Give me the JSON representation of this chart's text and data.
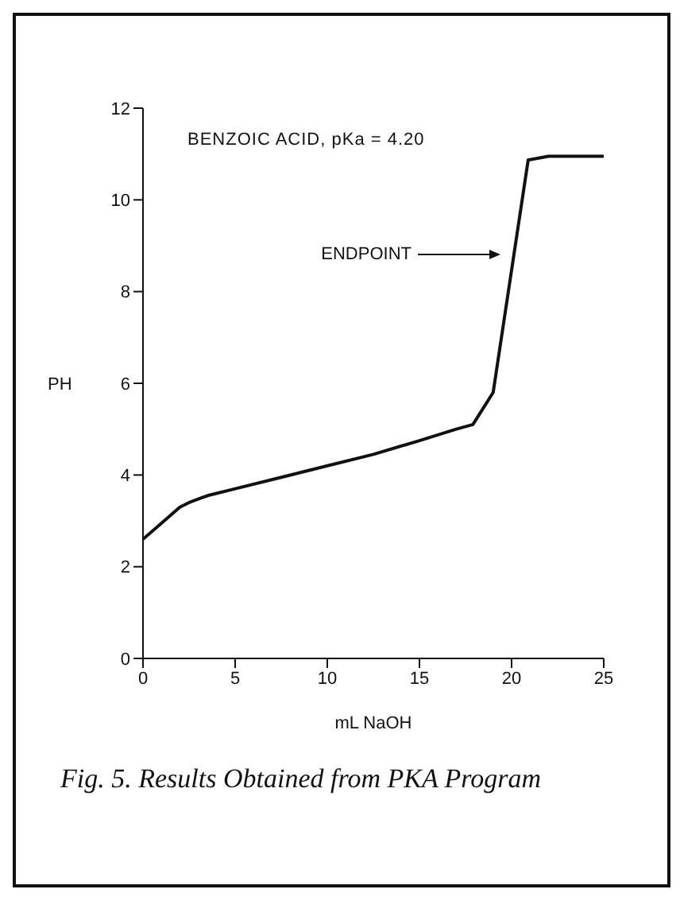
{
  "chart_data": {
    "type": "line",
    "xlabel": "mL NaOH",
    "ylabel": "PH",
    "x": [
      0,
      1,
      2,
      2.5,
      3.5,
      5,
      7.5,
      10,
      12.5,
      15,
      17,
      17.9,
      19.0,
      20.9,
      22,
      25
    ],
    "series": [
      {
        "color": "#111111",
        "values": [
          2.6,
          2.95,
          3.3,
          3.4,
          3.55,
          3.7,
          3.95,
          4.2,
          4.45,
          4.75,
          5.0,
          5.1,
          5.8,
          10.87,
          10.95,
          10.95
        ]
      }
    ],
    "xlim": [
      0,
      25
    ],
    "xticks": [
      0,
      5,
      10,
      15,
      20,
      25
    ],
    "ylim": [
      0,
      12
    ],
    "yticks": [
      0,
      2,
      4,
      6,
      8,
      10,
      12
    ],
    "annotations": [
      "BENZOIC ACID, pKa = 4.20",
      "ENDPOINT",
      "Fig. 5. Results Obtained from PKA Program"
    ]
  }
}
